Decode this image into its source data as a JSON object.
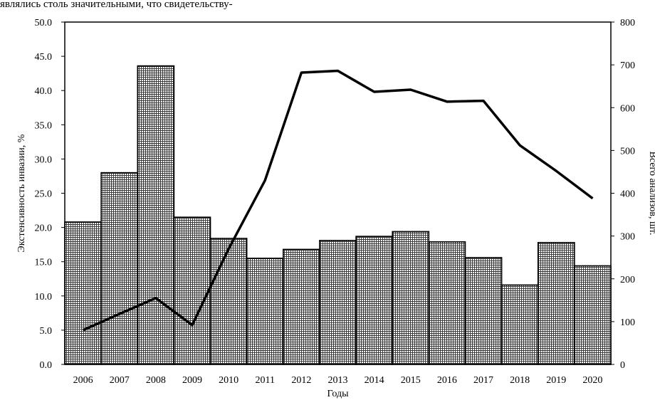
{
  "page_text": "являлись столь значительными, что свидетельству-",
  "chart_data": {
    "type": "bar",
    "categories": [
      "2006",
      "2007",
      "2008",
      "2009",
      "2010",
      "2011",
      "2012",
      "2013",
      "2014",
      "2015",
      "2016",
      "2017",
      "2018",
      "2019",
      "2020"
    ],
    "series": [
      {
        "type": "bar",
        "axis": "left",
        "values": [
          20.8,
          28.0,
          43.6,
          21.5,
          18.4,
          15.5,
          16.8,
          18.1,
          18.7,
          19.4,
          17.9,
          15.6,
          11.6,
          17.8,
          14.4
        ]
      },
      {
        "type": "line",
        "axis": "right",
        "values": [
          80,
          118,
          155,
          92,
          270,
          430,
          682,
          686,
          637,
          642,
          614,
          616,
          512,
          452,
          388
        ]
      }
    ],
    "xlabel": "Годы",
    "ylabel": "Экстенсивность инвазии, %",
    "y2label": "Всего анализов, шт.",
    "ylim": [
      0,
      50
    ],
    "y2lim": [
      0,
      800
    ],
    "yticks": [
      "0.0",
      "5.0",
      "10.0",
      "15.0",
      "20.0",
      "25.0",
      "30.0",
      "35.0",
      "40.0",
      "45.0",
      "50.0"
    ],
    "y2ticks": [
      "0",
      "100",
      "200",
      "300",
      "400",
      "500",
      "600",
      "700",
      "800"
    ],
    "grid": false,
    "legend": "none",
    "bar_fill": "crosshatch",
    "line_color": "#000000"
  }
}
